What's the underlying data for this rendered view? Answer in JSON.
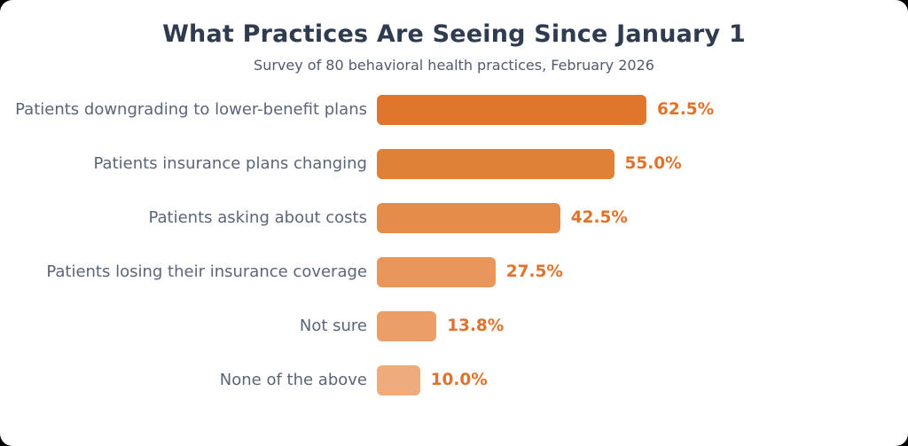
{
  "header": {
    "title": "What Practices Are Seeing Since January 1",
    "subtitle": "Survey of 80 behavioral health practices, February 2026"
  },
  "chart_data": {
    "type": "bar",
    "orientation": "horizontal",
    "title": "What Practices Are Seeing Since January 1",
    "subtitle": "Survey of 80 behavioral health practices, February 2026",
    "categories": [
      "Patients downgrading to lower-benefit plans",
      "Patients insurance plans changing",
      "Patients asking about costs",
      "Patients losing their insurance coverage",
      "Not sure",
      "None of the above"
    ],
    "values": [
      62.5,
      55.0,
      42.5,
      27.5,
      13.8,
      10.0
    ],
    "value_labels": [
      "62.5%",
      "55.0%",
      "42.5%",
      "27.5%",
      "13.8%",
      "10.0%"
    ],
    "bar_colors": [
      "#df762b",
      "#e08138",
      "#e48c4a",
      "#e8965c",
      "#eb9e68",
      "#eeab7d"
    ],
    "xlim": [
      0,
      100
    ],
    "axes_visible": false,
    "grid": false,
    "legend": false,
    "colors": {
      "title": "#2f3b4f",
      "subtitle": "#4f5b6d",
      "category_label": "#5a6577",
      "value_label": "#e1722c",
      "background": "#ffffff"
    }
  }
}
